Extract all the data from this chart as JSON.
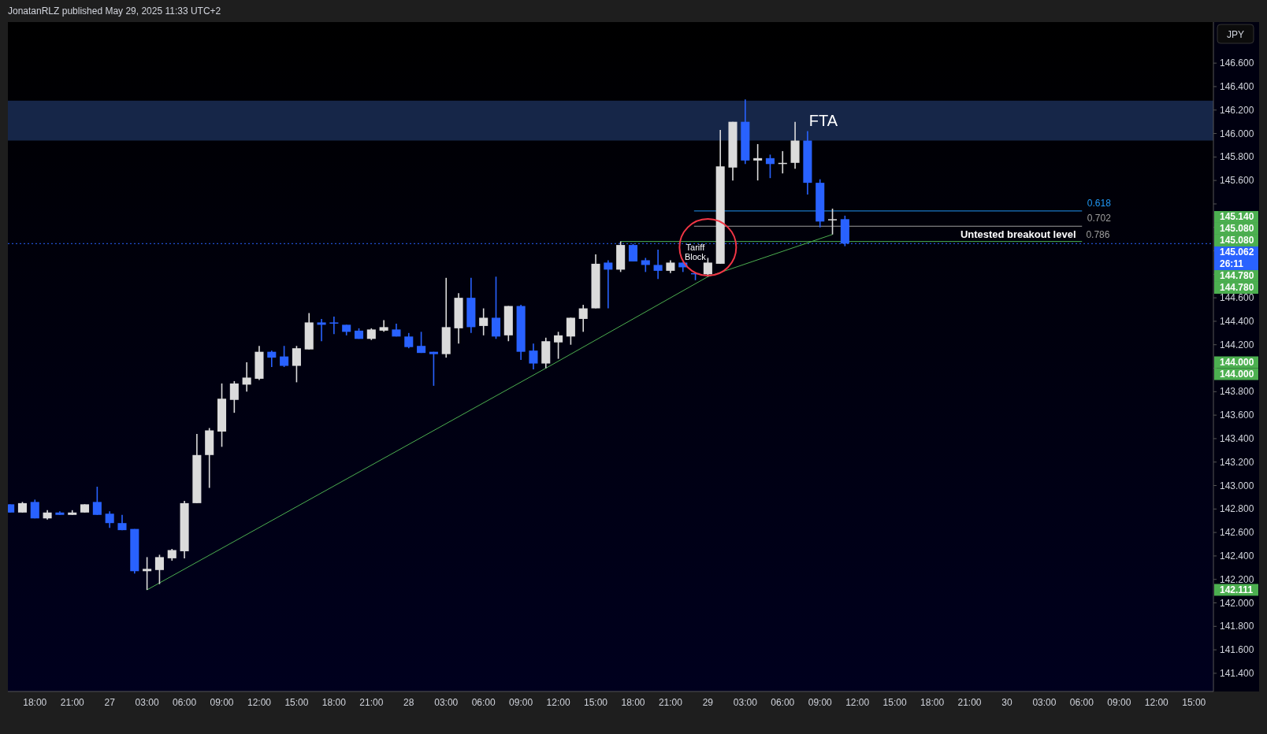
{
  "chart_data": {
    "type": "candlestick",
    "title": "JonatanRLZ published May 29, 2025 11:33 UTC+2",
    "ylabel": "JPY",
    "x": [
      "2025-05-26T16:00",
      "2025-05-26T17:00",
      "2025-05-26T18:00",
      "2025-05-26T19:00",
      "2025-05-26T20:00",
      "2025-05-26T21:00",
      "2025-05-26T22:00",
      "2025-05-26T23:00",
      "2025-05-27T00:00",
      "2025-05-27T01:00",
      "2025-05-27T02:00",
      "2025-05-27T03:00",
      "2025-05-27T04:00",
      "2025-05-27T05:00",
      "2025-05-27T06:00",
      "2025-05-27T07:00",
      "2025-05-27T08:00",
      "2025-05-27T09:00",
      "2025-05-27T10:00",
      "2025-05-27T11:00",
      "2025-05-27T12:00",
      "2025-05-27T13:00",
      "2025-05-27T14:00",
      "2025-05-27T15:00",
      "2025-05-27T16:00",
      "2025-05-27T17:00",
      "2025-05-27T18:00",
      "2025-05-27T19:00",
      "2025-05-27T20:00",
      "2025-05-27T21:00",
      "2025-05-27T22:00",
      "2025-05-27T23:00",
      "2025-05-28T00:00",
      "2025-05-28T01:00",
      "2025-05-28T02:00",
      "2025-05-28T03:00",
      "2025-05-28T04:00",
      "2025-05-28T05:00",
      "2025-05-28T06:00",
      "2025-05-28T07:00",
      "2025-05-28T08:00",
      "2025-05-28T09:00",
      "2025-05-28T10:00",
      "2025-05-28T11:00",
      "2025-05-28T12:00",
      "2025-05-28T13:00",
      "2025-05-28T14:00",
      "2025-05-28T15:00",
      "2025-05-28T16:00",
      "2025-05-28T17:00",
      "2025-05-28T18:00",
      "2025-05-28T19:00",
      "2025-05-28T20:00",
      "2025-05-28T21:00",
      "2025-05-28T22:00",
      "2025-05-28T23:00",
      "2025-05-29T00:00",
      "2025-05-29T01:00",
      "2025-05-29T02:00",
      "2025-05-29T03:00",
      "2025-05-29T04:00",
      "2025-05-29T05:00",
      "2025-05-29T06:00",
      "2025-05-29T07:00",
      "2025-05-29T08:00",
      "2025-05-29T09:00",
      "2025-05-29T10:00",
      "2025-05-29T11:00"
    ],
    "ohlc": [
      [
        142.84,
        142.84,
        142.77,
        142.77
      ],
      [
        142.77,
        142.86,
        142.77,
        142.85
      ],
      [
        142.86,
        142.88,
        142.72,
        142.72
      ],
      [
        142.72,
        142.79,
        142.71,
        142.77
      ],
      [
        142.77,
        142.78,
        142.75,
        142.75
      ],
      [
        142.75,
        142.79,
        142.75,
        142.77
      ],
      [
        142.77,
        142.84,
        142.77,
        142.84
      ],
      [
        142.86,
        142.99,
        142.75,
        142.75
      ],
      [
        142.76,
        142.78,
        142.64,
        142.68
      ],
      [
        142.68,
        142.75,
        142.62,
        142.62
      ],
      [
        142.63,
        142.63,
        142.25,
        142.27
      ],
      [
        142.27,
        142.39,
        142.111,
        142.29
      ],
      [
        142.28,
        142.41,
        142.16,
        142.39
      ],
      [
        142.38,
        142.46,
        142.36,
        142.45
      ],
      [
        142.44,
        142.87,
        142.38,
        142.85
      ],
      [
        142.85,
        143.44,
        142.85,
        143.26
      ],
      [
        143.26,
        143.49,
        142.98,
        143.47
      ],
      [
        143.46,
        143.87,
        143.33,
        143.74
      ],
      [
        143.73,
        143.89,
        143.62,
        143.87
      ],
      [
        143.86,
        144.05,
        143.8,
        143.92
      ],
      [
        143.91,
        144.19,
        143.9,
        144.14
      ],
      [
        144.14,
        144.15,
        144.01,
        144.09
      ],
      [
        144.1,
        144.19,
        144.01,
        144.02
      ],
      [
        144.02,
        144.19,
        143.88,
        144.17
      ],
      [
        144.16,
        144.47,
        144.16,
        144.39
      ],
      [
        144.39,
        144.42,
        144.23,
        144.37
      ],
      [
        144.39,
        144.44,
        144.29,
        144.38
      ],
      [
        144.37,
        144.37,
        144.28,
        144.31
      ],
      [
        144.32,
        144.34,
        144.25,
        144.25
      ],
      [
        144.25,
        144.34,
        144.24,
        144.33
      ],
      [
        144.32,
        144.41,
        144.31,
        144.35
      ],
      [
        144.33,
        144.38,
        144.27,
        144.27
      ],
      [
        144.27,
        144.3,
        144.17,
        144.18
      ],
      [
        144.19,
        144.31,
        144.13,
        144.13
      ],
      [
        144.14,
        144.14,
        143.85,
        144.12
      ],
      [
        144.12,
        144.77,
        144.09,
        144.35
      ],
      [
        144.34,
        144.64,
        144.21,
        144.6
      ],
      [
        144.6,
        144.77,
        144.3,
        144.35
      ],
      [
        144.36,
        144.51,
        144.28,
        144.43
      ],
      [
        144.43,
        144.78,
        144.25,
        144.27
      ],
      [
        144.28,
        144.53,
        144.23,
        144.53
      ],
      [
        144.53,
        144.54,
        144.07,
        144.14
      ],
      [
        144.15,
        144.21,
        143.99,
        144.04
      ],
      [
        144.04,
        144.26,
        144.0,
        144.23
      ],
      [
        144.22,
        144.31,
        144.08,
        144.28
      ],
      [
        144.27,
        144.43,
        144.2,
        144.43
      ],
      [
        144.42,
        144.54,
        144.31,
        144.51
      ],
      [
        144.51,
        144.97,
        144.51,
        144.89
      ],
      [
        144.9,
        144.92,
        144.51,
        144.84
      ],
      [
        144.84,
        145.08,
        144.82,
        145.05
      ],
      [
        145.05,
        145.06,
        144.91,
        144.91
      ],
      [
        144.92,
        144.94,
        144.82,
        144.88
      ],
      [
        144.88,
        145.01,
        144.76,
        144.83
      ],
      [
        144.83,
        144.92,
        144.81,
        144.9
      ],
      [
        144.9,
        144.9,
        144.82,
        144.86
      ],
      [
        144.81,
        144.81,
        144.75,
        144.8
      ],
      [
        144.8,
        144.94,
        144.78,
        144.9
      ],
      [
        144.89,
        146.03,
        144.89,
        145.72
      ],
      [
        145.71,
        146.1,
        145.6,
        146.1
      ],
      [
        146.1,
        146.29,
        145.74,
        145.77
      ],
      [
        145.77,
        145.91,
        145.6,
        145.79
      ],
      [
        145.79,
        145.82,
        145.62,
        145.74
      ],
      [
        145.74,
        145.85,
        145.66,
        145.75
      ],
      [
        145.75,
        146.1,
        145.7,
        145.94
      ],
      [
        145.94,
        146.02,
        145.48,
        145.58
      ],
      [
        145.58,
        145.61,
        145.2,
        145.25
      ],
      [
        145.26,
        145.36,
        145.14,
        145.27
      ],
      [
        145.27,
        145.3,
        145.04,
        145.062
      ]
    ],
    "colors": [
      "#2962ff",
      "#dbdbdb",
      "#2962ff",
      "#dbdbdb",
      "#2962ff",
      "#dbdbdb",
      "#dbdbdb",
      "#2962ff",
      "#2962ff",
      "#2962ff",
      "#2962ff",
      "#dbdbdb",
      "#dbdbdb",
      "#dbdbdb",
      "#dbdbdb",
      "#dbdbdb",
      "#dbdbdb",
      "#dbdbdb",
      "#dbdbdb",
      "#dbdbdb",
      "#dbdbdb",
      "#2962ff",
      "#2962ff",
      "#dbdbdb",
      "#dbdbdb",
      "#2962ff",
      "#2962ff",
      "#2962ff",
      "#2962ff",
      "#dbdbdb",
      "#dbdbdb",
      "#2962ff",
      "#2962ff",
      "#2962ff",
      "#2962ff",
      "#dbdbdb",
      "#dbdbdb",
      "#2962ff",
      "#dbdbdb",
      "#2962ff",
      "#dbdbdb",
      "#2962ff",
      "#2962ff",
      "#dbdbdb",
      "#dbdbdb",
      "#dbdbdb",
      "#dbdbdb",
      "#dbdbdb",
      "#2962ff",
      "#dbdbdb",
      "#2962ff",
      "#2962ff",
      "#2962ff",
      "#dbdbdb",
      "#2962ff",
      "#2962ff",
      "#dbdbdb",
      "#dbdbdb",
      "#dbdbdb",
      "#2962ff",
      "#dbdbdb",
      "#2962ff",
      "#dbdbdb",
      "#dbdbdb",
      "#2962ff",
      "#2962ff",
      "#dbdbdb",
      "#2962ff"
    ],
    "series": [
      {
        "type": "line",
        "color": "#4caf50",
        "x": [
          "2025-05-27T03:00",
          "2025-05-28T11:00",
          "2025-05-29T00:00",
          "2025-05-29T10:00"
        ],
        "values": [
          142.111,
          144.0,
          144.78,
          145.14
        ]
      },
      {
        "type": "line",
        "color": "#4caf50",
        "x": [
          "2025-05-28T17:00",
          "2025-05-30T06:00"
        ],
        "values": [
          145.08,
          145.08
        ]
      },
      {
        "type": "line",
        "name": "0.618",
        "color": "#2196f3",
        "x": [
          "2025-05-28T22:55",
          "2025-05-30T06:00"
        ],
        "values": [
          145.34,
          145.34
        ]
      },
      {
        "type": "line",
        "name": "0.702",
        "color": "#9e9e9e",
        "x": [
          "2025-05-28T22:55",
          "2025-05-30T06:00"
        ],
        "values": [
          145.21,
          145.21
        ]
      }
    ],
    "bands": [
      {
        "axis": "y",
        "from": 145.94,
        "to": 146.28,
        "label": "FTA",
        "color": "#1a2d55"
      }
    ],
    "ref_lines": [
      {
        "axis": "y",
        "value": 145.062,
        "label": "145.062 26:11",
        "color": "#2962ff",
        "line_style": "dotted"
      }
    ],
    "annotations": [
      {
        "text": "Tariff Block",
        "x": "2025-05-29T00:00",
        "y": 145.03
      },
      {
        "text": "Untested breakout level",
        "x": "2025-05-30T00:54",
        "y": 145.08
      },
      {
        "text": "0.786",
        "x": "2025-05-30T07:18",
        "y": 145.08
      },
      "145.140",
      "145.080",
      "145.080",
      "144.780",
      "144.780",
      "144.000",
      "144.000",
      "142.111"
    ],
    "xlim": [
      "2025-05-26T15:50",
      "2025-05-30T16:34"
    ],
    "xticks": [
      {
        "value": "2025-05-26T18:00",
        "label": "18:00"
      },
      {
        "value": "2025-05-26T21:00",
        "label": "21:00"
      },
      {
        "value": "2025-05-27T00:00",
        "label": "27"
      },
      {
        "value": "2025-05-27T03:00",
        "label": "03:00"
      },
      {
        "value": "2025-05-27T06:00",
        "label": "06:00"
      },
      {
        "value": "2025-05-27T09:00",
        "label": "09:00"
      },
      {
        "value": "2025-05-27T12:00",
        "label": "12:00"
      },
      {
        "value": "2025-05-27T15:00",
        "label": "15:00"
      },
      {
        "value": "2025-05-27T18:00",
        "label": "18:00"
      },
      {
        "value": "2025-05-27T21:00",
        "label": "21:00"
      },
      {
        "value": "2025-05-28T00:00",
        "label": "28"
      },
      {
        "value": "2025-05-28T03:00",
        "label": "03:00"
      },
      {
        "value": "2025-05-28T06:00",
        "label": "06:00"
      },
      {
        "value": "2025-05-28T09:00",
        "label": "09:00"
      },
      {
        "value": "2025-05-28T12:00",
        "label": "12:00"
      },
      {
        "value": "2025-05-28T15:00",
        "label": "15:00"
      },
      {
        "value": "2025-05-28T18:00",
        "label": "18:00"
      },
      {
        "value": "2025-05-28T21:00",
        "label": "21:00"
      },
      {
        "value": "2025-05-29T00:00",
        "label": "29"
      },
      {
        "value": "2025-05-29T03:00",
        "label": "03:00"
      },
      {
        "value": "2025-05-29T06:00",
        "label": "06:00"
      },
      {
        "value": "2025-05-29T09:00",
        "label": "09:00"
      },
      {
        "value": "2025-05-29T12:00",
        "label": "12:00"
      },
      {
        "value": "2025-05-29T15:00",
        "label": "15:00"
      },
      {
        "value": "2025-05-29T18:00",
        "label": "18:00"
      },
      {
        "value": "2025-05-29T21:00",
        "label": "21:00"
      },
      {
        "value": "2025-05-30T00:00",
        "label": "30"
      },
      {
        "value": "2025-05-30T03:00",
        "label": "03:00"
      },
      {
        "value": "2025-05-30T06:00",
        "label": "06:00"
      },
      {
        "value": "2025-05-30T09:00",
        "label": "09:00"
      },
      {
        "value": "2025-05-30T12:00",
        "label": "12:00"
      },
      {
        "value": "2025-05-30T15:00",
        "label": "15:00"
      }
    ],
    "ylim": [
      141.245,
      146.95
    ],
    "yticks": [
      {
        "value": 141.4,
        "label": "141.400"
      },
      {
        "value": 141.6,
        "label": "141.600"
      },
      {
        "value": 141.8,
        "label": "141.800"
      },
      {
        "value": 142.0,
        "label": "142.000"
      },
      {
        "value": 142.2,
        "label": "142.200"
      },
      {
        "value": 142.4,
        "label": "142.400"
      },
      {
        "value": 142.6,
        "label": "142.600"
      },
      {
        "value": 142.8,
        "label": "142.800"
      },
      {
        "value": 143.0,
        "label": "143.000"
      },
      {
        "value": 143.2,
        "label": "143.200"
      },
      {
        "value": 143.4,
        "label": "143.400"
      },
      {
        "value": 143.6,
        "label": "143.600"
      },
      {
        "value": 143.8,
        "label": "143.800"
      },
      {
        "value": 144.0,
        "label": null
      },
      {
        "value": 144.2,
        "label": "144.200"
      },
      {
        "value": 144.4,
        "label": "144.400"
      },
      {
        "value": 144.6,
        "label": "144.600"
      },
      {
        "value": 144.8,
        "label": null
      },
      {
        "value": 145.0,
        "label": null
      },
      {
        "value": 145.2,
        "label": null
      },
      {
        "value": 145.4,
        "label": null
      },
      {
        "value": 145.6,
        "label": "145.600"
      },
      {
        "value": 145.8,
        "label": "145.800"
      },
      {
        "value": 146.0,
        "label": "146.000"
      },
      {
        "value": 146.2,
        "label": "146.200"
      },
      {
        "value": 146.4,
        "label": "146.400"
      },
      {
        "value": 146.6,
        "label": "146.600"
      }
    ]
  }
}
